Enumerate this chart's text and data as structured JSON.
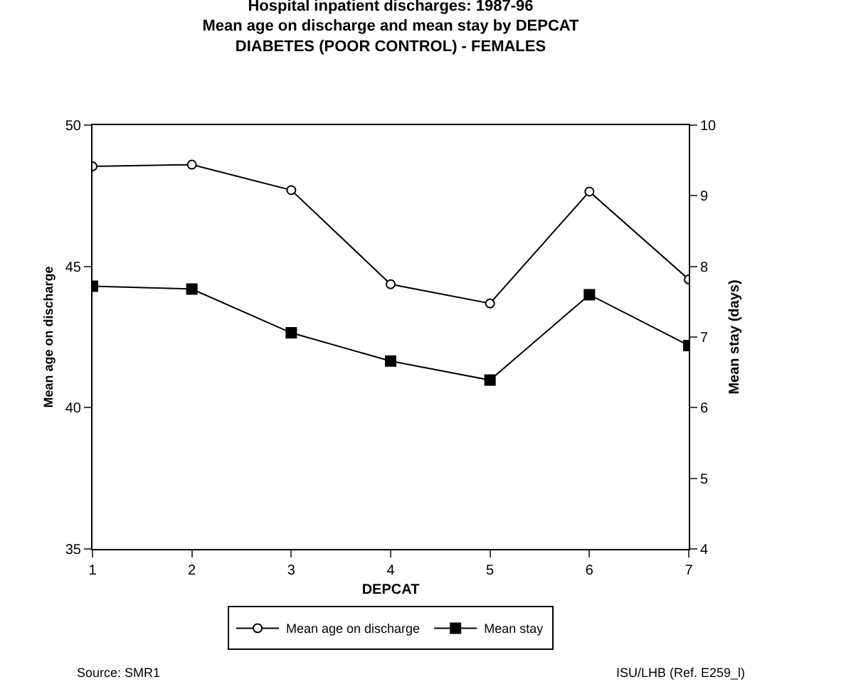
{
  "chart_data": {
    "type": "line",
    "title": "Hospital inpatient discharges: 1987-96\nMean age on discharge and mean stay by DEPCAT\nDIABETES (POOR CONTROL) - FEMALES",
    "xlabel": "DEPCAT",
    "ylabel": "Mean age on discharge",
    "y2label": "Mean stay (days)",
    "x": [
      1,
      2,
      3,
      4,
      5,
      6,
      7
    ],
    "xlim": [
      1,
      7
    ],
    "xticks": [
      1,
      2,
      3,
      4,
      5,
      6,
      7
    ],
    "ylim": [
      35,
      50
    ],
    "yticks": [
      35,
      40,
      45,
      50
    ],
    "y2lim": [
      4,
      10
    ],
    "y2ticks": [
      4,
      5,
      6,
      7,
      8,
      9,
      10
    ],
    "series": [
      {
        "name": "Mean age on discharge",
        "color": "#000000",
        "marker": "circle",
        "values": [
          48.54,
          48.6,
          47.7,
          44.37,
          43.69,
          47.65,
          44.54
        ]
      },
      {
        "name": "Mean stay",
        "color": "#000000",
        "marker": "square",
        "axis": "y2",
        "values": [
          7.72,
          7.68,
          7.06,
          6.66,
          6.39,
          7.6,
          6.88
        ]
      }
    ],
    "grid": false,
    "legend": "bottom",
    "annotations": [
      "Source: SMR1",
      "ISU/LHB (Ref. E259_l)"
    ]
  }
}
